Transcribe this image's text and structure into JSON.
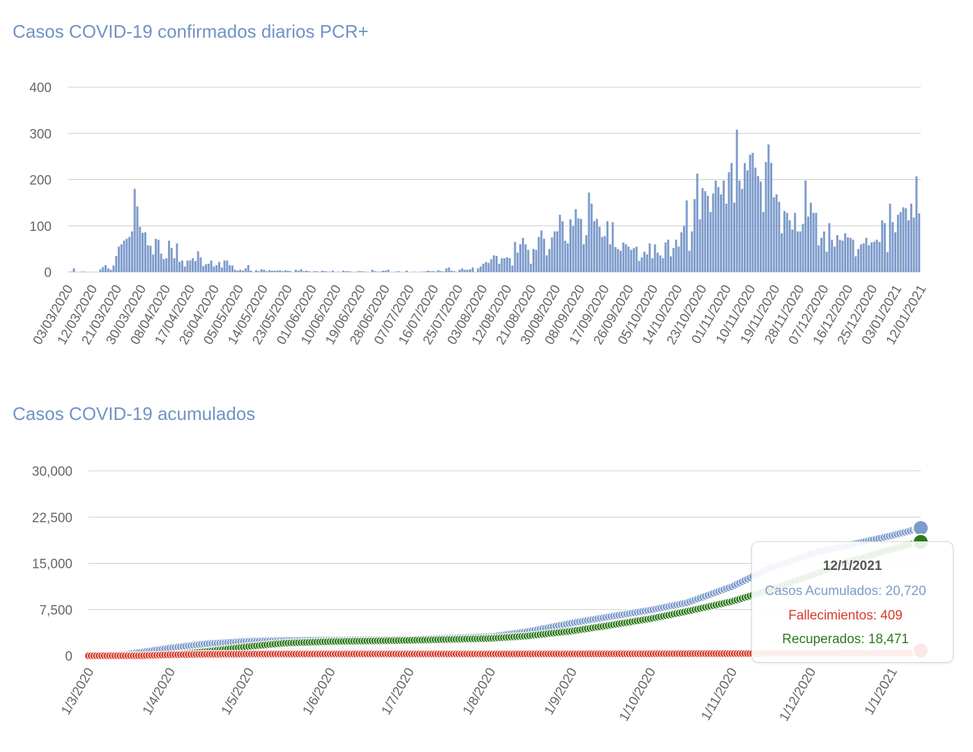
{
  "chart_data": [
    {
      "type": "bar",
      "title": "Casos COVID-19 confirmados diarios PCR+",
      "xlabel": "",
      "ylabel": "",
      "ylim": [
        0,
        400
      ],
      "yticks": [
        0,
        100,
        200,
        300,
        400
      ],
      "grid": true,
      "color": "#7d9bcb",
      "x_tick_labels": [
        "03/03/2020",
        "12/03/2020",
        "21/03/2020",
        "30/03/2020",
        "08/04/2020",
        "17/04/2020",
        "26/04/2020",
        "05/05/2020",
        "14/05/2020",
        "23/05/2020",
        "01/06/2020",
        "10/06/2020",
        "19/06/2020",
        "28/06/2020",
        "07/07/2020",
        "16/07/2020",
        "25/07/2020",
        "03/08/2020",
        "12/08/2020",
        "21/08/2020",
        "30/08/2020",
        "08/09/2020",
        "17/09/2020",
        "26/09/2020",
        "05/10/2020",
        "14/10/2020",
        "23/10/2020",
        "01/11/2020",
        "10/11/2020",
        "19/11/2020",
        "28/11/2020",
        "07/12/2020",
        "16/12/2020",
        "25/12/2020",
        "03/01/2021",
        "12/01/2021"
      ],
      "values": [
        0,
        1,
        8,
        0,
        0,
        1,
        1,
        0,
        0,
        0,
        0,
        0,
        6,
        11,
        15,
        8,
        5,
        14,
        35,
        55,
        60,
        68,
        72,
        76,
        88,
        180,
        142,
        98,
        85,
        86,
        58,
        57,
        38,
        72,
        70,
        40,
        28,
        30,
        68,
        52,
        30,
        62,
        22,
        25,
        12,
        25,
        25,
        30,
        24,
        45,
        32,
        13,
        17,
        18,
        25,
        12,
        15,
        22,
        10,
        25,
        25,
        15,
        14,
        5,
        3,
        5,
        3,
        8,
        15,
        3,
        0,
        4,
        2,
        6,
        5,
        2,
        4,
        3,
        3,
        3,
        4,
        2,
        4,
        3,
        2,
        0,
        5,
        3,
        6,
        2,
        3,
        2,
        0,
        2,
        2,
        0,
        3,
        2,
        1,
        1,
        3,
        0,
        1,
        0,
        3,
        2,
        2,
        1,
        0,
        1,
        2,
        2,
        1,
        0,
        0,
        5,
        2,
        1,
        1,
        3,
        3,
        5,
        0,
        0,
        1,
        2,
        0,
        0,
        3,
        0,
        0,
        1,
        0,
        0,
        1,
        1,
        3,
        2,
        2,
        1,
        4,
        2,
        1,
        8,
        10,
        3,
        2,
        0,
        5,
        8,
        5,
        5,
        6,
        10,
        0,
        8,
        12,
        18,
        22,
        20,
        28,
        36,
        35,
        18,
        30,
        30,
        32,
        30,
        14,
        65,
        42,
        60,
        74,
        60,
        48,
        18,
        50,
        48,
        76,
        90,
        72,
        36,
        50,
        75,
        88,
        88,
        124,
        110,
        68,
        62,
        114,
        100,
        136,
        116,
        115,
        60,
        80,
        172,
        148,
        110,
        115,
        98,
        76,
        78,
        110,
        60,
        108,
        54,
        50,
        46,
        64,
        60,
        55,
        48,
        52,
        55,
        24,
        32,
        44,
        38,
        62,
        30,
        60,
        42,
        36,
        30,
        64,
        70,
        34,
        52,
        70,
        55,
        86,
        100,
        155,
        46,
        88,
        158,
        213,
        114,
        182,
        175,
        165,
        130,
        170,
        198,
        184,
        168,
        198,
        148,
        216,
        236,
        150,
        308,
        198,
        180,
        236,
        220,
        254,
        258,
        226,
        208,
        196,
        130,
        238,
        276,
        236,
        162,
        168,
        152,
        84,
        132,
        128,
        112,
        92,
        128,
        88,
        88,
        104,
        198,
        120,
        150,
        128,
        128,
        58,
        74,
        88,
        44,
        106,
        70,
        55,
        80,
        70,
        68,
        84,
        75,
        74,
        70,
        34,
        50,
        60,
        62,
        74,
        58,
        64,
        66,
        70,
        65,
        112,
        106,
        43,
        148,
        108,
        86,
        124,
        130,
        140,
        138,
        112,
        148,
        118,
        207,
        127
      ]
    },
    {
      "type": "scatter",
      "title": "Casos COVID-19 acumulados",
      "xlabel": "",
      "ylabel": "",
      "ylim": [
        0,
        30000
      ],
      "yticks": [
        0,
        7500,
        15000,
        22500,
        30000
      ],
      "ytick_labels": [
        "0",
        "7,500",
        "15,000",
        "22,500",
        "30,000"
      ],
      "grid": true,
      "x_tick_labels": [
        "1/3/2020",
        "1/4/2020",
        "1/5/2020",
        "1/6/2020",
        "1/7/2020",
        "1/8/2020",
        "1/9/2020",
        "1/10/2020",
        "1/11/2020",
        "1/12/2020",
        "1/1/2021"
      ],
      "x_start": "1/3/2020",
      "x_end": "12/1/2021",
      "series": [
        {
          "name": "Casos Acumulados",
          "color": "#7d9bcb",
          "points": [
            [
              "1/3/2020",
              0
            ],
            [
              "15/3/2020",
              200
            ],
            [
              "1/4/2020",
              1250
            ],
            [
              "15/4/2020",
              1950
            ],
            [
              "1/5/2020",
              2350
            ],
            [
              "15/5/2020",
              2480
            ],
            [
              "1/6/2020",
              2550
            ],
            [
              "1/7/2020",
              2650
            ],
            [
              "1/8/2020",
              3100
            ],
            [
              "15/8/2020",
              3900
            ],
            [
              "1/9/2020",
              5300
            ],
            [
              "15/9/2020",
              6300
            ],
            [
              "1/10/2020",
              7400
            ],
            [
              "15/10/2020",
              8600
            ],
            [
              "1/11/2020",
              11200
            ],
            [
              "15/11/2020",
              14100
            ],
            [
              "1/12/2020",
              16500
            ],
            [
              "15/12/2020",
              17900
            ],
            [
              "1/1/2021",
              19500
            ],
            [
              "12/1/2021",
              20720
            ]
          ]
        },
        {
          "name": "Recuperados",
          "color": "#2c7a1c",
          "points": [
            [
              "1/3/2020",
              0
            ],
            [
              "25/3/2020",
              0
            ],
            [
              "1/4/2020",
              100
            ],
            [
              "15/4/2020",
              700
            ],
            [
              "1/5/2020",
              1500
            ],
            [
              "15/5/2020",
              2050
            ],
            [
              "1/6/2020",
              2300
            ],
            [
              "1/7/2020",
              2500
            ],
            [
              "1/8/2020",
              2800
            ],
            [
              "15/8/2020",
              3200
            ],
            [
              "1/9/2020",
              4000
            ],
            [
              "15/9/2020",
              4900
            ],
            [
              "1/10/2020",
              6000
            ],
            [
              "15/10/2020",
              7200
            ],
            [
              "1/11/2020",
              8800
            ],
            [
              "15/11/2020",
              10600
            ],
            [
              "1/12/2020",
              13000
            ],
            [
              "15/12/2020",
              15200
            ],
            [
              "1/1/2021",
              17300
            ],
            [
              "12/1/2021",
              18471
            ]
          ]
        },
        {
          "name": "Fallecimientos",
          "color": "#d93a2b",
          "points": [
            [
              "1/3/2020",
              0
            ],
            [
              "20/3/2020",
              0
            ],
            [
              "1/4/2020",
              150
            ],
            [
              "15/4/2020",
              240
            ],
            [
              "1/5/2020",
              270
            ],
            [
              "1/6/2020",
              280
            ],
            [
              "1/8/2020",
              285
            ],
            [
              "1/9/2020",
              300
            ],
            [
              "1/10/2020",
              320
            ],
            [
              "1/11/2020",
              350
            ],
            [
              "1/12/2020",
              380
            ],
            [
              "1/1/2021",
              400
            ],
            [
              "12/1/2021",
              409
            ]
          ]
        }
      ]
    }
  ],
  "tooltip": {
    "date": "12/1/2021",
    "rows": [
      {
        "label": "Casos Acumulados: 20,720",
        "color": "#7d9bcb"
      },
      {
        "label": "Fallecimientos: 409",
        "color": "#d93a2b"
      },
      {
        "label": "Recuperados: 18,471",
        "color": "#2c7a1c"
      }
    ]
  }
}
